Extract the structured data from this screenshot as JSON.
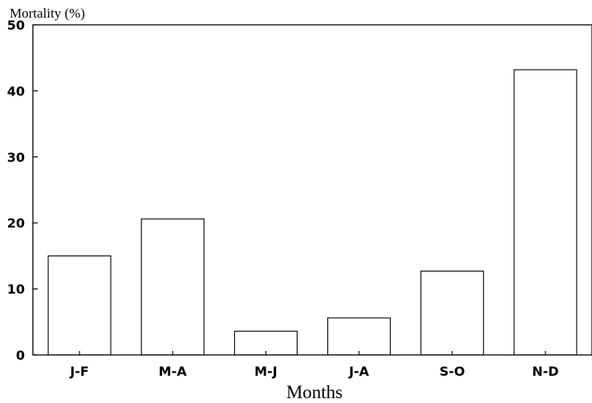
{
  "chart_data": {
    "type": "bar",
    "title": "",
    "ylabel": "Mortality (%)",
    "xlabel": "Months",
    "categories": [
      "J-F",
      "M-A",
      "M-J",
      "J-A",
      "S-O",
      "N-D"
    ],
    "values": [
      15.0,
      20.6,
      3.6,
      5.6,
      12.7,
      43.2
    ],
    "ylim": [
      0,
      50
    ],
    "yticks": [
      "0",
      "10",
      "20",
      "30",
      "40",
      "50"
    ],
    "grid": false,
    "legend": "none"
  }
}
